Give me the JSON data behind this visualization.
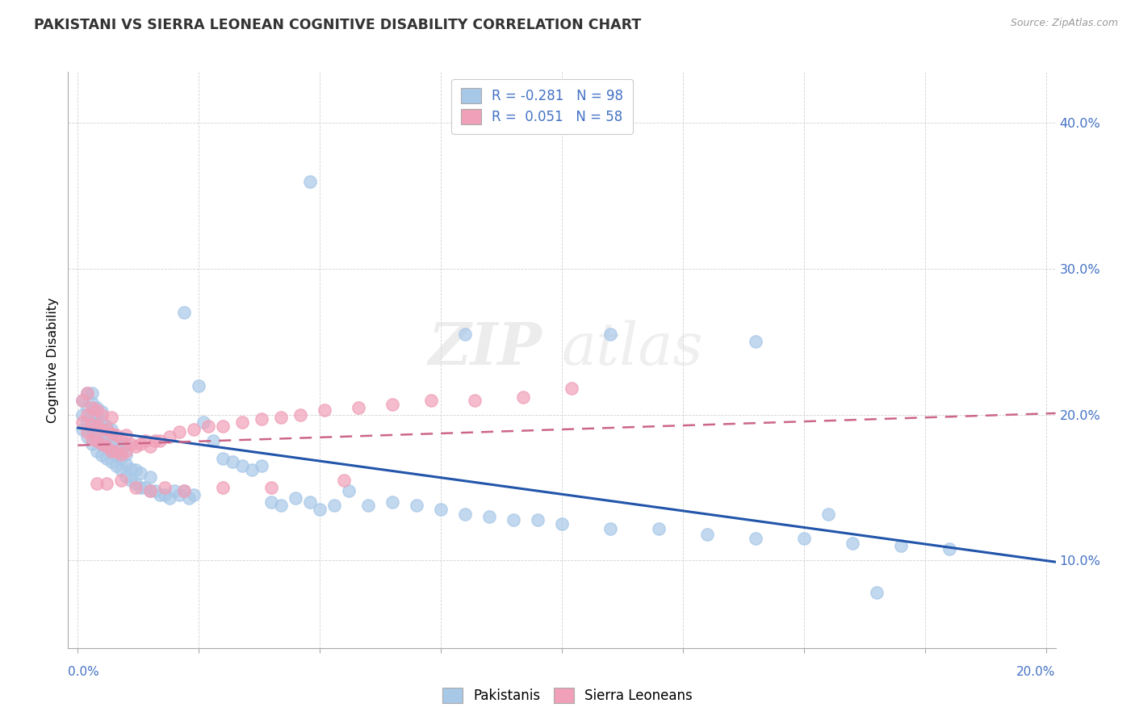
{
  "title": "PAKISTANI VS SIERRA LEONEAN COGNITIVE DISABILITY CORRELATION CHART",
  "source": "Source: ZipAtlas.com",
  "ylabel": "Cognitive Disability",
  "y_ticks": [
    0.1,
    0.2,
    0.3,
    0.4
  ],
  "y_tick_labels": [
    "10.0%",
    "20.0%",
    "30.0%",
    "40.0%"
  ],
  "x_ticks": [
    0.0,
    0.025,
    0.05,
    0.075,
    0.1,
    0.125,
    0.15,
    0.175,
    0.2
  ],
  "xlim": [
    -0.002,
    0.202
  ],
  "ylim": [
    0.04,
    0.435
  ],
  "R_pakistani": -0.281,
  "N_pakistani": 98,
  "R_sierraleonean": 0.051,
  "N_sierraleonean": 58,
  "color_pakistani": "#A8C8E8",
  "color_sierraleonean": "#F0A0B8",
  "color_trend_pakistani": "#2255AA",
  "color_trend_sierraleonean": "#CC6688",
  "watermark_zip": "ZIP",
  "watermark_atlas": "atlas",
  "pakistani_x": [
    0.001,
    0.001,
    0.001,
    0.002,
    0.002,
    0.002,
    0.002,
    0.003,
    0.003,
    0.003,
    0.003,
    0.003,
    0.003,
    0.004,
    0.004,
    0.004,
    0.004,
    0.004,
    0.005,
    0.005,
    0.005,
    0.005,
    0.005,
    0.006,
    0.006,
    0.006,
    0.006,
    0.007,
    0.007,
    0.007,
    0.007,
    0.008,
    0.008,
    0.008,
    0.009,
    0.009,
    0.009,
    0.01,
    0.01,
    0.01,
    0.01,
    0.011,
    0.011,
    0.012,
    0.012,
    0.013,
    0.013,
    0.014,
    0.015,
    0.015,
    0.016,
    0.017,
    0.018,
    0.019,
    0.02,
    0.021,
    0.022,
    0.023,
    0.024,
    0.025,
    0.026,
    0.028,
    0.03,
    0.032,
    0.034,
    0.036,
    0.038,
    0.04,
    0.042,
    0.045,
    0.048,
    0.05,
    0.053,
    0.056,
    0.06,
    0.065,
    0.07,
    0.075,
    0.08,
    0.085,
    0.09,
    0.095,
    0.1,
    0.11,
    0.12,
    0.13,
    0.14,
    0.15,
    0.16,
    0.17,
    0.022,
    0.048,
    0.08,
    0.11,
    0.14,
    0.155,
    0.165,
    0.18
  ],
  "pakistani_y": [
    0.19,
    0.2,
    0.21,
    0.185,
    0.195,
    0.205,
    0.215,
    0.18,
    0.188,
    0.195,
    0.2,
    0.208,
    0.215,
    0.175,
    0.183,
    0.19,
    0.198,
    0.205,
    0.172,
    0.18,
    0.188,
    0.195,
    0.202,
    0.17,
    0.178,
    0.185,
    0.192,
    0.168,
    0.175,
    0.182,
    0.19,
    0.165,
    0.172,
    0.18,
    0.162,
    0.17,
    0.178,
    0.158,
    0.166,
    0.173,
    0.18,
    0.155,
    0.163,
    0.153,
    0.162,
    0.15,
    0.16,
    0.15,
    0.148,
    0.157,
    0.148,
    0.145,
    0.145,
    0.143,
    0.148,
    0.145,
    0.148,
    0.143,
    0.145,
    0.22,
    0.195,
    0.182,
    0.17,
    0.168,
    0.165,
    0.162,
    0.165,
    0.14,
    0.138,
    0.143,
    0.14,
    0.135,
    0.138,
    0.148,
    0.138,
    0.14,
    0.138,
    0.135,
    0.132,
    0.13,
    0.128,
    0.128,
    0.125,
    0.122,
    0.122,
    0.118,
    0.115,
    0.115,
    0.112,
    0.11,
    0.27,
    0.36,
    0.255,
    0.255,
    0.25,
    0.132,
    0.078,
    0.108
  ],
  "sierraleonean_x": [
    0.001,
    0.001,
    0.002,
    0.002,
    0.002,
    0.003,
    0.003,
    0.003,
    0.004,
    0.004,
    0.004,
    0.005,
    0.005,
    0.005,
    0.006,
    0.006,
    0.007,
    0.007,
    0.007,
    0.008,
    0.008,
    0.009,
    0.009,
    0.01,
    0.01,
    0.011,
    0.012,
    0.013,
    0.014,
    0.015,
    0.016,
    0.017,
    0.019,
    0.021,
    0.024,
    0.027,
    0.03,
    0.034,
    0.038,
    0.042,
    0.046,
    0.051,
    0.058,
    0.065,
    0.073,
    0.082,
    0.092,
    0.102,
    0.004,
    0.006,
    0.009,
    0.012,
    0.015,
    0.018,
    0.022,
    0.03,
    0.04,
    0.055
  ],
  "sierraleonean_y": [
    0.195,
    0.21,
    0.188,
    0.2,
    0.215,
    0.183,
    0.193,
    0.205,
    0.182,
    0.192,
    0.203,
    0.18,
    0.19,
    0.2,
    0.178,
    0.19,
    0.175,
    0.187,
    0.198,
    0.175,
    0.186,
    0.173,
    0.184,
    0.175,
    0.186,
    0.18,
    0.178,
    0.18,
    0.182,
    0.178,
    0.182,
    0.182,
    0.185,
    0.188,
    0.19,
    0.192,
    0.192,
    0.195,
    0.197,
    0.198,
    0.2,
    0.203,
    0.205,
    0.207,
    0.21,
    0.21,
    0.212,
    0.218,
    0.153,
    0.153,
    0.155,
    0.15,
    0.148,
    0.15,
    0.148,
    0.15,
    0.15,
    0.155
  ],
  "trend_pak_x0": 0.0,
  "trend_pak_x1": 0.202,
  "trend_pak_y0": 0.191,
  "trend_pak_y1": 0.099,
  "trend_sl_x0": 0.0,
  "trend_sl_x1": 0.202,
  "trend_sl_y0": 0.179,
  "trend_sl_y1": 0.201
}
